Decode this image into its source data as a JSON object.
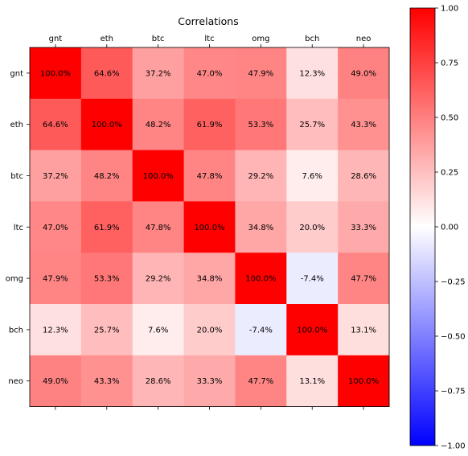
{
  "chart_data": {
    "type": "heatmap",
    "title": "Correlations",
    "xlabel": "",
    "ylabel": "",
    "x_axis_position": "top",
    "categories": [
      "gnt",
      "eth",
      "btc",
      "ltc",
      "omg",
      "bch",
      "neo"
    ],
    "values": [
      [
        100.0,
        64.6,
        37.2,
        47.0,
        47.9,
        12.3,
        49.0
      ],
      [
        64.6,
        100.0,
        48.2,
        61.9,
        53.3,
        25.7,
        43.3
      ],
      [
        37.2,
        48.2,
        100.0,
        47.8,
        29.2,
        7.6,
        28.6
      ],
      [
        47.0,
        61.9,
        47.8,
        100.0,
        34.8,
        20.0,
        33.3
      ],
      [
        47.9,
        53.3,
        29.2,
        34.8,
        100.0,
        -7.4,
        47.7
      ],
      [
        12.3,
        25.7,
        7.6,
        20.0,
        -7.4,
        100.0,
        13.1
      ],
      [
        49.0,
        43.3,
        28.6,
        33.3,
        47.7,
        13.1,
        100.0
      ]
    ],
    "cell_labels": [
      [
        "100.0%",
        "64.6%",
        "37.2%",
        "47.0%",
        "47.9%",
        "12.3%",
        "49.0%"
      ],
      [
        "64.6%",
        "100.0%",
        "48.2%",
        "61.9%",
        "53.3%",
        "25.7%",
        "43.3%"
      ],
      [
        "37.2%",
        "48.2%",
        "100.0%",
        "47.8%",
        "29.2%",
        "7.6%",
        "28.6%"
      ],
      [
        "47.0%",
        "61.9%",
        "47.8%",
        "100.0%",
        "34.8%",
        "20.0%",
        "33.3%"
      ],
      [
        "47.9%",
        "53.3%",
        "29.2%",
        "34.8%",
        "100.0%",
        "-7.4%",
        "47.7%"
      ],
      [
        "12.3%",
        "25.7%",
        "7.6%",
        "20.0%",
        "-7.4%",
        "100.0%",
        "13.1%"
      ],
      [
        "49.0%",
        "43.3%",
        "28.6%",
        "33.3%",
        "47.7%",
        "13.1%",
        "100.0%"
      ]
    ],
    "colorscale": "bwr",
    "colors": {
      "low": "#0000ff",
      "mid": "#ffffff",
      "high": "#ff0000"
    },
    "colorbar": {
      "range": [
        -1.0,
        1.0
      ],
      "ticks": [
        -1.0,
        -0.75,
        -0.5,
        -0.25,
        0.0,
        0.25,
        0.5,
        0.75,
        1.0
      ],
      "tick_labels": [
        "−1.00",
        "−0.75",
        "−0.50",
        "−0.25",
        "0.00",
        "0.25",
        "0.50",
        "0.75",
        "1.00"
      ],
      "position": "right"
    },
    "grid": false
  }
}
